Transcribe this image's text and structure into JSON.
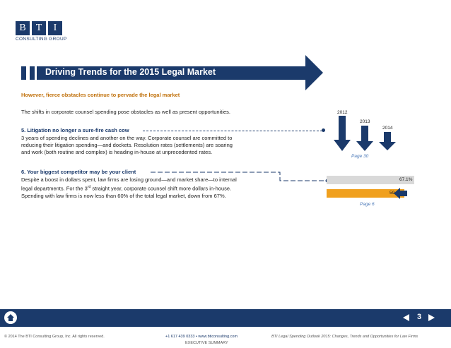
{
  "logo": {
    "letters": [
      "B",
      "T",
      "I"
    ],
    "subtitle": "CONSULTING GROUP"
  },
  "header": {
    "title": "Driving Trends for the 2015 Legal Market",
    "subheading": "However, fierce obstacles continue to pervade the legal market",
    "intro": "The shifts in corporate counsel spending pose obstacles as well as present opportunities."
  },
  "section5": {
    "title": "5. Litigation no longer a sure-fire cash cow",
    "lines": [
      "3 years of spending declines and another on the way. Corporate counsel are committed to",
      "reducing their litigation spending—and dockets. Resolution rates (settlements) are soaring",
      "and work (both routine and complex) is heading in-house at unprecedented rates."
    ],
    "years": [
      "2012",
      "2013",
      "2014"
    ],
    "page_ref": "Page 30"
  },
  "section6": {
    "title": "6. Your biggest competitor may be your client",
    "lines": [
      "Despite a boost in dollars spent, law firms are losing ground—and market share—to internal",
      [
        "legal departments. For the 3",
        "rd",
        " straight year, corporate counsel shift more dollars in-house."
      ],
      "Spending with law firms is now less than 60% of the total legal market, down from 67%."
    ],
    "bars": [
      {
        "label": "67.1%",
        "value": 67.1,
        "color": "#d9d9d9"
      },
      {
        "label": "59.8%",
        "value": 59.8,
        "color": "#f0a01e"
      }
    ],
    "page_ref": "Page 6"
  },
  "footer": {
    "page_number": "3",
    "prev_icon": "triangle-left-icon",
    "next_icon": "triangle-right-icon",
    "copyright": "© 2014 The BTI Consulting Group, Inc. All rights reserved.",
    "contact": "+1 617 439 0333  •  www.bticonsulting.com",
    "report": "BTI Legal Spending Outlook 2015: Changes, Trends and Opportunities for Law Firms",
    "summary": "EXECUTIVE SUMMARY"
  },
  "colors": {
    "navy": "#1b3a6b",
    "accent": "#c0700a",
    "bar_gray": "#d9d9d9",
    "bar_orange": "#f0a01e",
    "link": "#4a78b8"
  }
}
